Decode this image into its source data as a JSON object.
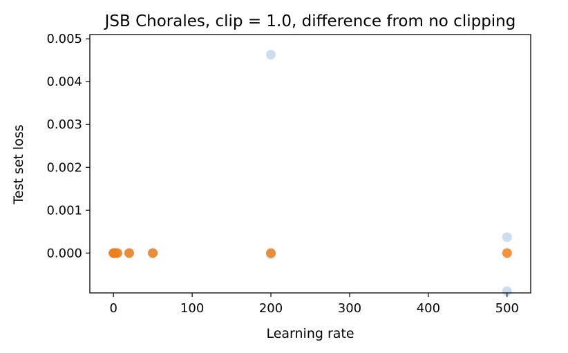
{
  "chart_data": {
    "type": "scatter",
    "title": "JSB Chorales, clip = 1.0, difference from no clipping",
    "xlabel": "Learning rate",
    "ylabel": "Test set loss",
    "xlim": [
      -30,
      530
    ],
    "ylim": [
      -0.00093,
      0.0051
    ],
    "xticks": [
      0,
      100,
      200,
      300,
      400,
      500
    ],
    "xtick_labels": [
      "0",
      "100",
      "200",
      "300",
      "400",
      "500"
    ],
    "yticks": [
      0.0,
      0.001,
      0.002,
      0.003,
      0.004,
      0.005
    ],
    "ytick_labels": [
      "0.000",
      "0.001",
      "0.002",
      "0.003",
      "0.004",
      "0.005"
    ],
    "grid": false,
    "series": [
      {
        "color": "#aecde8",
        "opacity": 0.65,
        "points": [
          {
            "x": 0,
            "y": 0.0
          },
          {
            "x": 1,
            "y": 0.0
          },
          {
            "x": 2,
            "y": 0.0
          },
          {
            "x": 5,
            "y": 0.0
          },
          {
            "x": 20,
            "y": 0.0
          },
          {
            "x": 50,
            "y": 0.0
          },
          {
            "x": 200,
            "y": 0.00463
          },
          {
            "x": 200,
            "y": -3e-05
          },
          {
            "x": 500,
            "y": 0.00037
          },
          {
            "x": 500,
            "y": -0.00089
          }
        ]
      },
      {
        "color": "#f07f1a",
        "opacity": 0.85,
        "points": [
          {
            "x": 0,
            "y": 0.0
          },
          {
            "x": 1,
            "y": 0.0
          },
          {
            "x": 2,
            "y": 0.0
          },
          {
            "x": 5,
            "y": 0.0
          },
          {
            "x": 20,
            "y": 0.0
          },
          {
            "x": 50,
            "y": 0.0
          },
          {
            "x": 200,
            "y": 0.0
          },
          {
            "x": 500,
            "y": 0.0
          }
        ]
      }
    ]
  }
}
